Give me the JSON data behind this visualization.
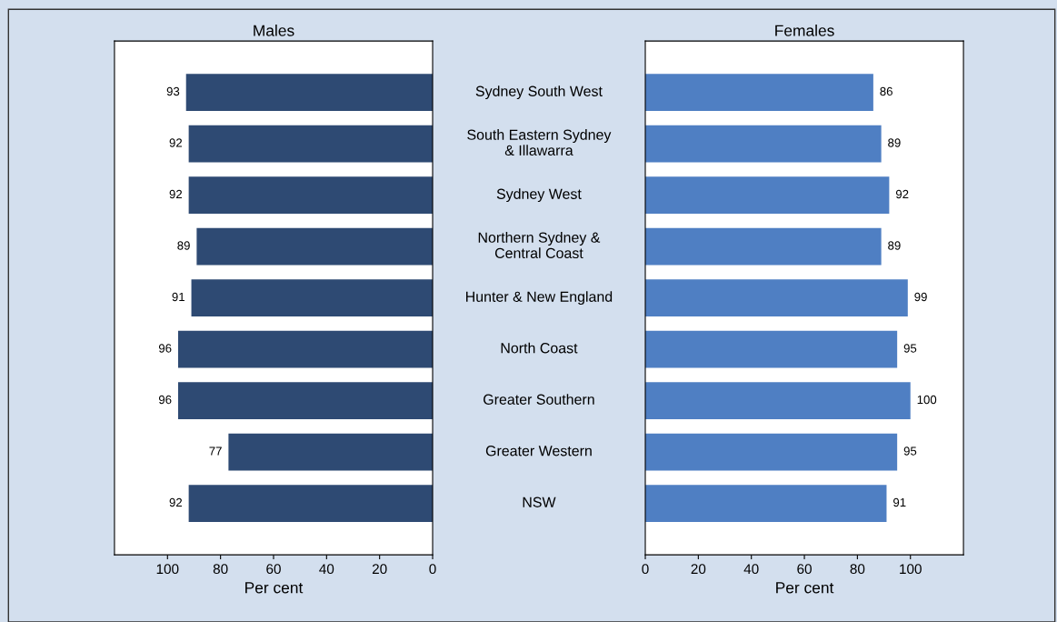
{
  "chart_data": [
    {
      "type": "bar",
      "orientation": "horizontal",
      "title": "Males",
      "xlabel": "Per cent",
      "categories": [
        "Sydney South West",
        "South Eastern Sydney\n& Illawarra",
        "Sydney West",
        "Northern Sydney &\nCentral Coast",
        "Hunter & New England",
        "North Coast",
        "Greater Southern",
        "Greater Western",
        "NSW"
      ],
      "values": [
        93,
        92,
        92,
        89,
        91,
        96,
        96,
        77,
        92
      ],
      "color": "#2e4a73",
      "xlim": [
        120,
        0
      ],
      "xticks": [
        100,
        80,
        60,
        40,
        20,
        0
      ],
      "data_labels": true,
      "grid": false
    },
    {
      "type": "bar",
      "orientation": "horizontal",
      "title": "Females",
      "xlabel": "Per cent",
      "values": [
        86,
        89,
        92,
        89,
        99,
        95,
        100,
        95,
        91
      ],
      "color": "#4f7fc3",
      "xlim": [
        0,
        120
      ],
      "xticks": [
        0,
        20,
        40,
        60,
        80,
        100
      ],
      "data_labels": true,
      "grid": false
    }
  ]
}
